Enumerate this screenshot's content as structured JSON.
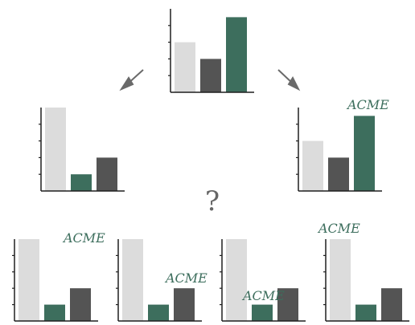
{
  "labels": {
    "brand": "ACME",
    "question": "?"
  },
  "colors": {
    "light_bar": "#dcdcdc",
    "dark_bar": "#545454",
    "green_bar": "#3d6e5d",
    "axis": "#1f1f1f",
    "arrow": "#6a6a6a",
    "brand_text": "#3d6e5d",
    "question_text": "#666666"
  },
  "chart_data": [
    {
      "name": "top",
      "type": "bar",
      "bar_colors": [
        "light",
        "dark",
        "green"
      ],
      "values": [
        3.0,
        2.0,
        4.5
      ],
      "ylim": [
        0,
        5
      ],
      "brand_label": false
    },
    {
      "name": "middle-left",
      "type": "bar",
      "bar_colors": [
        "light",
        "green",
        "dark"
      ],
      "values": [
        5.0,
        1.0,
        2.0
      ],
      "ylim": [
        0,
        5
      ],
      "brand_label": false
    },
    {
      "name": "middle-right",
      "type": "bar",
      "bar_colors": [
        "light",
        "dark",
        "green"
      ],
      "values": [
        3.0,
        2.0,
        4.5
      ],
      "ylim": [
        0,
        5
      ],
      "brand_label": true
    },
    {
      "name": "option-1",
      "type": "bar",
      "bar_colors": [
        "light",
        "green",
        "dark"
      ],
      "values": [
        5.0,
        1.0,
        2.0
      ],
      "ylim": [
        0,
        5
      ],
      "brand_label": true
    },
    {
      "name": "option-2",
      "type": "bar",
      "bar_colors": [
        "light",
        "green",
        "dark"
      ],
      "values": [
        5.0,
        1.0,
        2.0
      ],
      "ylim": [
        0,
        5
      ],
      "brand_label": true
    },
    {
      "name": "option-3",
      "type": "bar",
      "bar_colors": [
        "light",
        "green",
        "dark"
      ],
      "values": [
        5.0,
        1.0,
        2.0
      ],
      "ylim": [
        0,
        5
      ],
      "brand_label": true
    },
    {
      "name": "option-4",
      "type": "bar",
      "bar_colors": [
        "light",
        "green",
        "dark"
      ],
      "values": [
        5.0,
        1.0,
        2.0
      ],
      "ylim": [
        0,
        5
      ],
      "brand_label": true
    }
  ]
}
